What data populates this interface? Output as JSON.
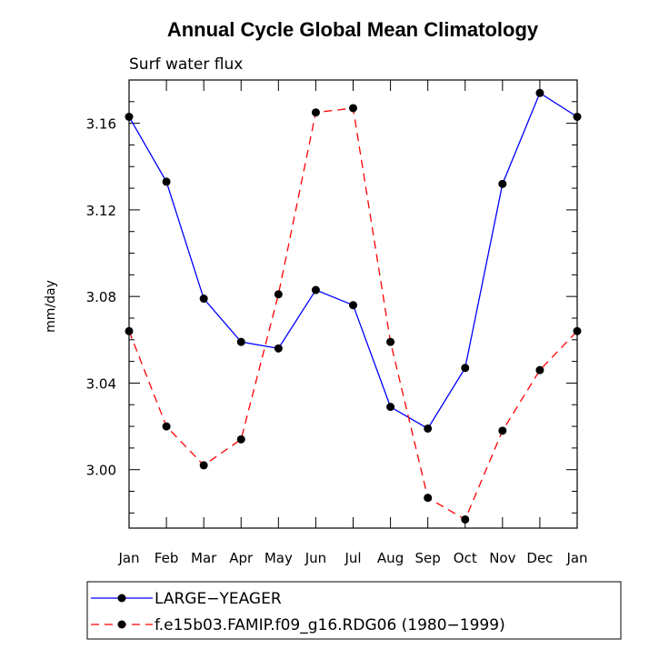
{
  "chart_data": {
    "type": "line",
    "title": "Annual Cycle Global Mean Climatology",
    "subtitle": "Surf water flux",
    "xlabel": "",
    "ylabel": "mm/day",
    "categories": [
      "Jan",
      "Feb",
      "Mar",
      "Apr",
      "May",
      "Jun",
      "Jul",
      "Aug",
      "Sep",
      "Oct",
      "Nov",
      "Dec",
      "Jan"
    ],
    "ylim": [
      2.973,
      3.18
    ],
    "yticks": [
      3.0,
      3.04,
      3.08,
      3.12,
      3.16
    ],
    "ytick_labels": [
      "3.00",
      "3.04",
      "3.08",
      "3.12",
      "3.16"
    ],
    "series": [
      {
        "name": "LARGE−YEAGER",
        "color": "#0000ff",
        "style": "solid",
        "values": [
          3.163,
          3.133,
          3.079,
          3.059,
          3.056,
          3.083,
          3.076,
          3.029,
          3.019,
          3.047,
          3.132,
          3.174,
          3.163
        ]
      },
      {
        "name": "f.e15b03.FAMIP.f09_g16.RDG06 (1980−1999)",
        "color": "#ff0000",
        "style": "dashed",
        "values": [
          3.064,
          3.02,
          3.002,
          3.014,
          3.081,
          3.165,
          3.167,
          3.059,
          2.987,
          2.977,
          3.018,
          3.046,
          3.064
        ]
      }
    ],
    "legend_position": "bottom"
  }
}
